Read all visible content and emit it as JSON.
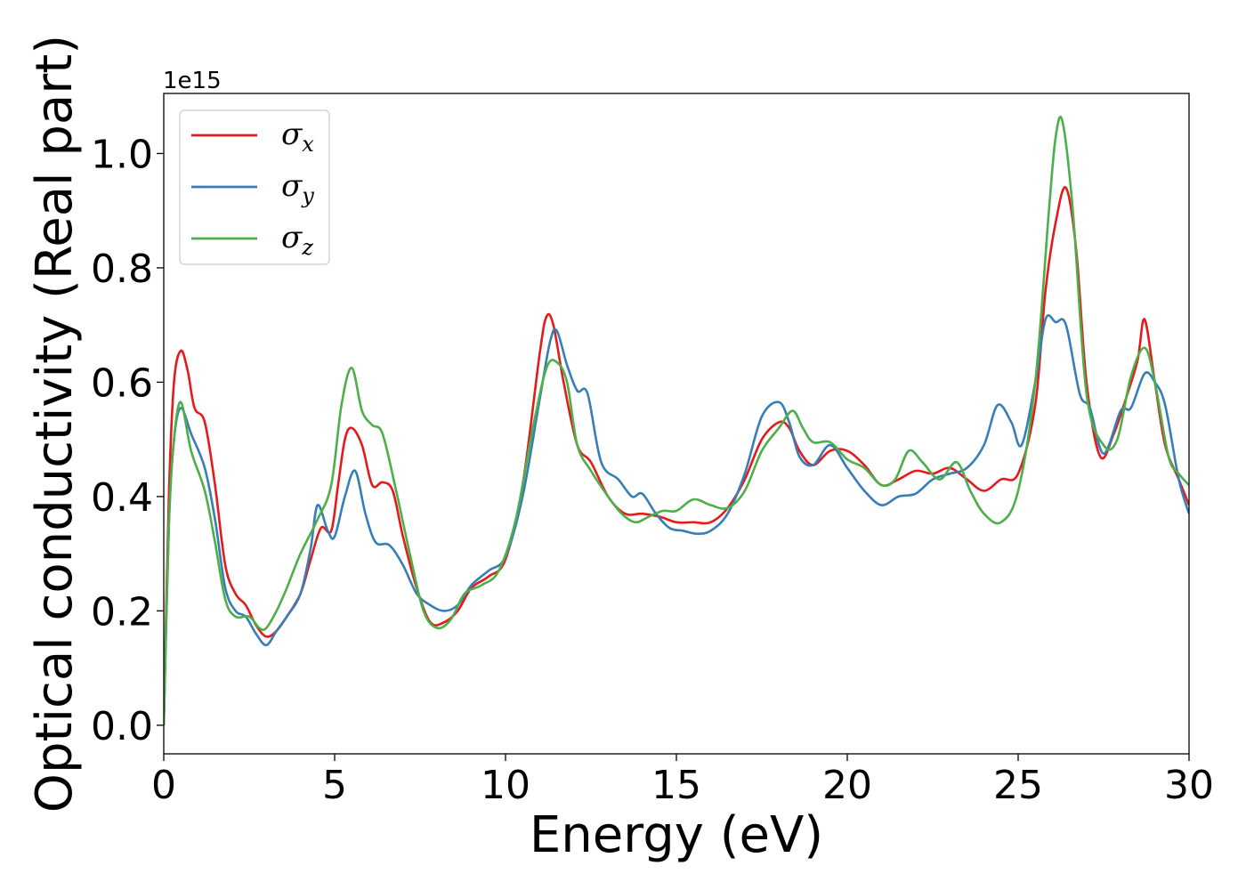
{
  "chart_data": {
    "type": "line",
    "xlabel": "Energy (eV)",
    "ylabel": "Optical conductivity (Real part)",
    "y_offset_label": "1e15",
    "xlim": [
      0,
      30
    ],
    "ylim": [
      -0.05,
      1.105
    ],
    "xticks": [
      0,
      5,
      10,
      15,
      20,
      25,
      30
    ],
    "xtick_labels": [
      "0",
      "5",
      "10",
      "15",
      "20",
      "25",
      "30"
    ],
    "yticks": [
      0.0,
      0.2,
      0.4,
      0.6,
      0.8,
      1.0
    ],
    "ytick_labels": [
      "0.0",
      "0.2",
      "0.4",
      "0.6",
      "0.8",
      "1.0"
    ],
    "grid": false,
    "legend_position": "top-left",
    "series": [
      {
        "name": "σx",
        "symbol": "σ",
        "subscript": "x",
        "color": "#e41a1c",
        "points": [
          [
            0,
            0
          ],
          [
            0.15,
            0.4
          ],
          [
            0.3,
            0.6
          ],
          [
            0.5,
            0.655
          ],
          [
            0.7,
            0.62
          ],
          [
            0.9,
            0.555
          ],
          [
            1.2,
            0.53
          ],
          [
            1.5,
            0.42
          ],
          [
            1.8,
            0.28
          ],
          [
            2.1,
            0.23
          ],
          [
            2.4,
            0.21
          ],
          [
            2.7,
            0.175
          ],
          [
            3.0,
            0.155
          ],
          [
            3.3,
            0.165
          ],
          [
            3.6,
            0.19
          ],
          [
            4.0,
            0.23
          ],
          [
            4.3,
            0.29
          ],
          [
            4.6,
            0.345
          ],
          [
            4.9,
            0.34
          ],
          [
            5.1,
            0.42
          ],
          [
            5.3,
            0.5
          ],
          [
            5.5,
            0.52
          ],
          [
            5.8,
            0.49
          ],
          [
            6.1,
            0.42
          ],
          [
            6.4,
            0.425
          ],
          [
            6.7,
            0.41
          ],
          [
            7.0,
            0.33
          ],
          [
            7.4,
            0.24
          ],
          [
            7.8,
            0.18
          ],
          [
            8.2,
            0.18
          ],
          [
            8.6,
            0.2
          ],
          [
            9.0,
            0.24
          ],
          [
            9.5,
            0.26
          ],
          [
            10.0,
            0.29
          ],
          [
            10.5,
            0.42
          ],
          [
            11.0,
            0.65
          ],
          [
            11.2,
            0.715
          ],
          [
            11.4,
            0.7
          ],
          [
            11.7,
            0.6
          ],
          [
            12.1,
            0.49
          ],
          [
            12.5,
            0.46
          ],
          [
            13.0,
            0.4
          ],
          [
            13.5,
            0.37
          ],
          [
            14.0,
            0.37
          ],
          [
            14.5,
            0.365
          ],
          [
            15.0,
            0.355
          ],
          [
            15.5,
            0.355
          ],
          [
            16.0,
            0.355
          ],
          [
            16.5,
            0.38
          ],
          [
            17.0,
            0.43
          ],
          [
            17.5,
            0.5
          ],
          [
            18.0,
            0.53
          ],
          [
            18.3,
            0.52
          ],
          [
            18.6,
            0.48
          ],
          [
            19.0,
            0.455
          ],
          [
            19.5,
            0.48
          ],
          [
            20.0,
            0.48
          ],
          [
            20.5,
            0.455
          ],
          [
            21.0,
            0.42
          ],
          [
            21.5,
            0.43
          ],
          [
            22.0,
            0.445
          ],
          [
            22.5,
            0.44
          ],
          [
            23.0,
            0.45
          ],
          [
            23.5,
            0.43
          ],
          [
            24.0,
            0.41
          ],
          [
            24.5,
            0.43
          ],
          [
            25.0,
            0.44
          ],
          [
            25.5,
            0.56
          ],
          [
            25.8,
            0.76
          ],
          [
            26.1,
            0.88
          ],
          [
            26.4,
            0.94
          ],
          [
            26.7,
            0.83
          ],
          [
            27.0,
            0.6
          ],
          [
            27.4,
            0.47
          ],
          [
            27.8,
            0.51
          ],
          [
            28.2,
            0.58
          ],
          [
            28.5,
            0.64
          ],
          [
            28.7,
            0.71
          ],
          [
            29.0,
            0.6
          ],
          [
            29.3,
            0.49
          ],
          [
            29.7,
            0.43
          ],
          [
            30.0,
            0.385
          ]
        ]
      },
      {
        "name": "σy",
        "symbol": "σ",
        "subscript": "y",
        "color": "#377eb8",
        "points": [
          [
            0,
            0
          ],
          [
            0.15,
            0.35
          ],
          [
            0.3,
            0.5
          ],
          [
            0.5,
            0.555
          ],
          [
            0.8,
            0.51
          ],
          [
            1.2,
            0.45
          ],
          [
            1.5,
            0.36
          ],
          [
            1.8,
            0.24
          ],
          [
            2.1,
            0.2
          ],
          [
            2.4,
            0.19
          ],
          [
            2.7,
            0.16
          ],
          [
            3.0,
            0.14
          ],
          [
            3.3,
            0.165
          ],
          [
            3.6,
            0.19
          ],
          [
            4.0,
            0.23
          ],
          [
            4.3,
            0.31
          ],
          [
            4.5,
            0.385
          ],
          [
            4.8,
            0.34
          ],
          [
            5.0,
            0.33
          ],
          [
            5.3,
            0.4
          ],
          [
            5.6,
            0.445
          ],
          [
            5.9,
            0.37
          ],
          [
            6.2,
            0.32
          ],
          [
            6.6,
            0.315
          ],
          [
            7.0,
            0.28
          ],
          [
            7.4,
            0.23
          ],
          [
            7.8,
            0.21
          ],
          [
            8.2,
            0.2
          ],
          [
            8.6,
            0.21
          ],
          [
            9.0,
            0.245
          ],
          [
            9.5,
            0.27
          ],
          [
            10.0,
            0.295
          ],
          [
            10.5,
            0.4
          ],
          [
            11.0,
            0.57
          ],
          [
            11.3,
            0.67
          ],
          [
            11.5,
            0.69
          ],
          [
            11.8,
            0.63
          ],
          [
            12.1,
            0.585
          ],
          [
            12.4,
            0.58
          ],
          [
            12.8,
            0.46
          ],
          [
            13.3,
            0.43
          ],
          [
            13.7,
            0.4
          ],
          [
            14.0,
            0.405
          ],
          [
            14.4,
            0.37
          ],
          [
            14.8,
            0.345
          ],
          [
            15.2,
            0.34
          ],
          [
            15.6,
            0.335
          ],
          [
            16.0,
            0.34
          ],
          [
            16.5,
            0.37
          ],
          [
            17.0,
            0.44
          ],
          [
            17.5,
            0.54
          ],
          [
            18.0,
            0.565
          ],
          [
            18.3,
            0.53
          ],
          [
            18.6,
            0.47
          ],
          [
            19.0,
            0.455
          ],
          [
            19.5,
            0.49
          ],
          [
            20.0,
            0.45
          ],
          [
            20.5,
            0.41
          ],
          [
            21.0,
            0.385
          ],
          [
            21.5,
            0.4
          ],
          [
            22.0,
            0.405
          ],
          [
            22.5,
            0.43
          ],
          [
            23.0,
            0.44
          ],
          [
            23.5,
            0.45
          ],
          [
            24.0,
            0.49
          ],
          [
            24.4,
            0.56
          ],
          [
            24.8,
            0.53
          ],
          [
            25.1,
            0.49
          ],
          [
            25.5,
            0.6
          ],
          [
            25.8,
            0.71
          ],
          [
            26.1,
            0.705
          ],
          [
            26.4,
            0.7
          ],
          [
            26.8,
            0.58
          ],
          [
            27.1,
            0.555
          ],
          [
            27.5,
            0.475
          ],
          [
            28.0,
            0.55
          ],
          [
            28.3,
            0.555
          ],
          [
            28.7,
            0.615
          ],
          [
            29.0,
            0.6
          ],
          [
            29.3,
            0.56
          ],
          [
            29.7,
            0.43
          ],
          [
            30.0,
            0.37
          ]
        ]
      },
      {
        "name": "σz",
        "symbol": "σ",
        "subscript": "z",
        "color": "#4daf4a",
        "points": [
          [
            0,
            0
          ],
          [
            0.15,
            0.35
          ],
          [
            0.3,
            0.5
          ],
          [
            0.5,
            0.565
          ],
          [
            0.8,
            0.48
          ],
          [
            1.2,
            0.41
          ],
          [
            1.5,
            0.32
          ],
          [
            1.8,
            0.22
          ],
          [
            2.1,
            0.19
          ],
          [
            2.5,
            0.19
          ],
          [
            2.8,
            0.17
          ],
          [
            3.0,
            0.17
          ],
          [
            3.3,
            0.2
          ],
          [
            3.6,
            0.24
          ],
          [
            4.0,
            0.3
          ],
          [
            4.5,
            0.36
          ],
          [
            4.9,
            0.42
          ],
          [
            5.2,
            0.56
          ],
          [
            5.5,
            0.625
          ],
          [
            5.8,
            0.55
          ],
          [
            6.1,
            0.525
          ],
          [
            6.4,
            0.51
          ],
          [
            6.8,
            0.41
          ],
          [
            7.2,
            0.3
          ],
          [
            7.6,
            0.2
          ],
          [
            8.0,
            0.17
          ],
          [
            8.4,
            0.185
          ],
          [
            8.8,
            0.23
          ],
          [
            9.3,
            0.245
          ],
          [
            9.8,
            0.27
          ],
          [
            10.3,
            0.36
          ],
          [
            10.8,
            0.52
          ],
          [
            11.2,
            0.625
          ],
          [
            11.5,
            0.635
          ],
          [
            11.8,
            0.6
          ],
          [
            12.1,
            0.49
          ],
          [
            12.5,
            0.445
          ],
          [
            13.0,
            0.4
          ],
          [
            13.4,
            0.37
          ],
          [
            13.8,
            0.355
          ],
          [
            14.2,
            0.365
          ],
          [
            14.6,
            0.375
          ],
          [
            15.0,
            0.375
          ],
          [
            15.5,
            0.395
          ],
          [
            16.0,
            0.385
          ],
          [
            16.5,
            0.38
          ],
          [
            17.0,
            0.41
          ],
          [
            17.5,
            0.48
          ],
          [
            18.0,
            0.52
          ],
          [
            18.4,
            0.55
          ],
          [
            18.7,
            0.52
          ],
          [
            19.0,
            0.495
          ],
          [
            19.5,
            0.495
          ],
          [
            20.0,
            0.465
          ],
          [
            20.5,
            0.45
          ],
          [
            21.0,
            0.42
          ],
          [
            21.4,
            0.43
          ],
          [
            21.8,
            0.48
          ],
          [
            22.2,
            0.46
          ],
          [
            22.7,
            0.43
          ],
          [
            23.2,
            0.46
          ],
          [
            23.6,
            0.41
          ],
          [
            24.0,
            0.37
          ],
          [
            24.5,
            0.355
          ],
          [
            25.0,
            0.41
          ],
          [
            25.5,
            0.6
          ],
          [
            25.9,
            0.9
          ],
          [
            26.1,
            1.03
          ],
          [
            26.3,
            1.055
          ],
          [
            26.6,
            0.9
          ],
          [
            27.0,
            0.58
          ],
          [
            27.5,
            0.49
          ],
          [
            27.9,
            0.5
          ],
          [
            28.3,
            0.61
          ],
          [
            28.7,
            0.66
          ],
          [
            29.0,
            0.6
          ],
          [
            29.4,
            0.47
          ],
          [
            29.7,
            0.44
          ],
          [
            30.0,
            0.42
          ]
        ]
      }
    ]
  }
}
